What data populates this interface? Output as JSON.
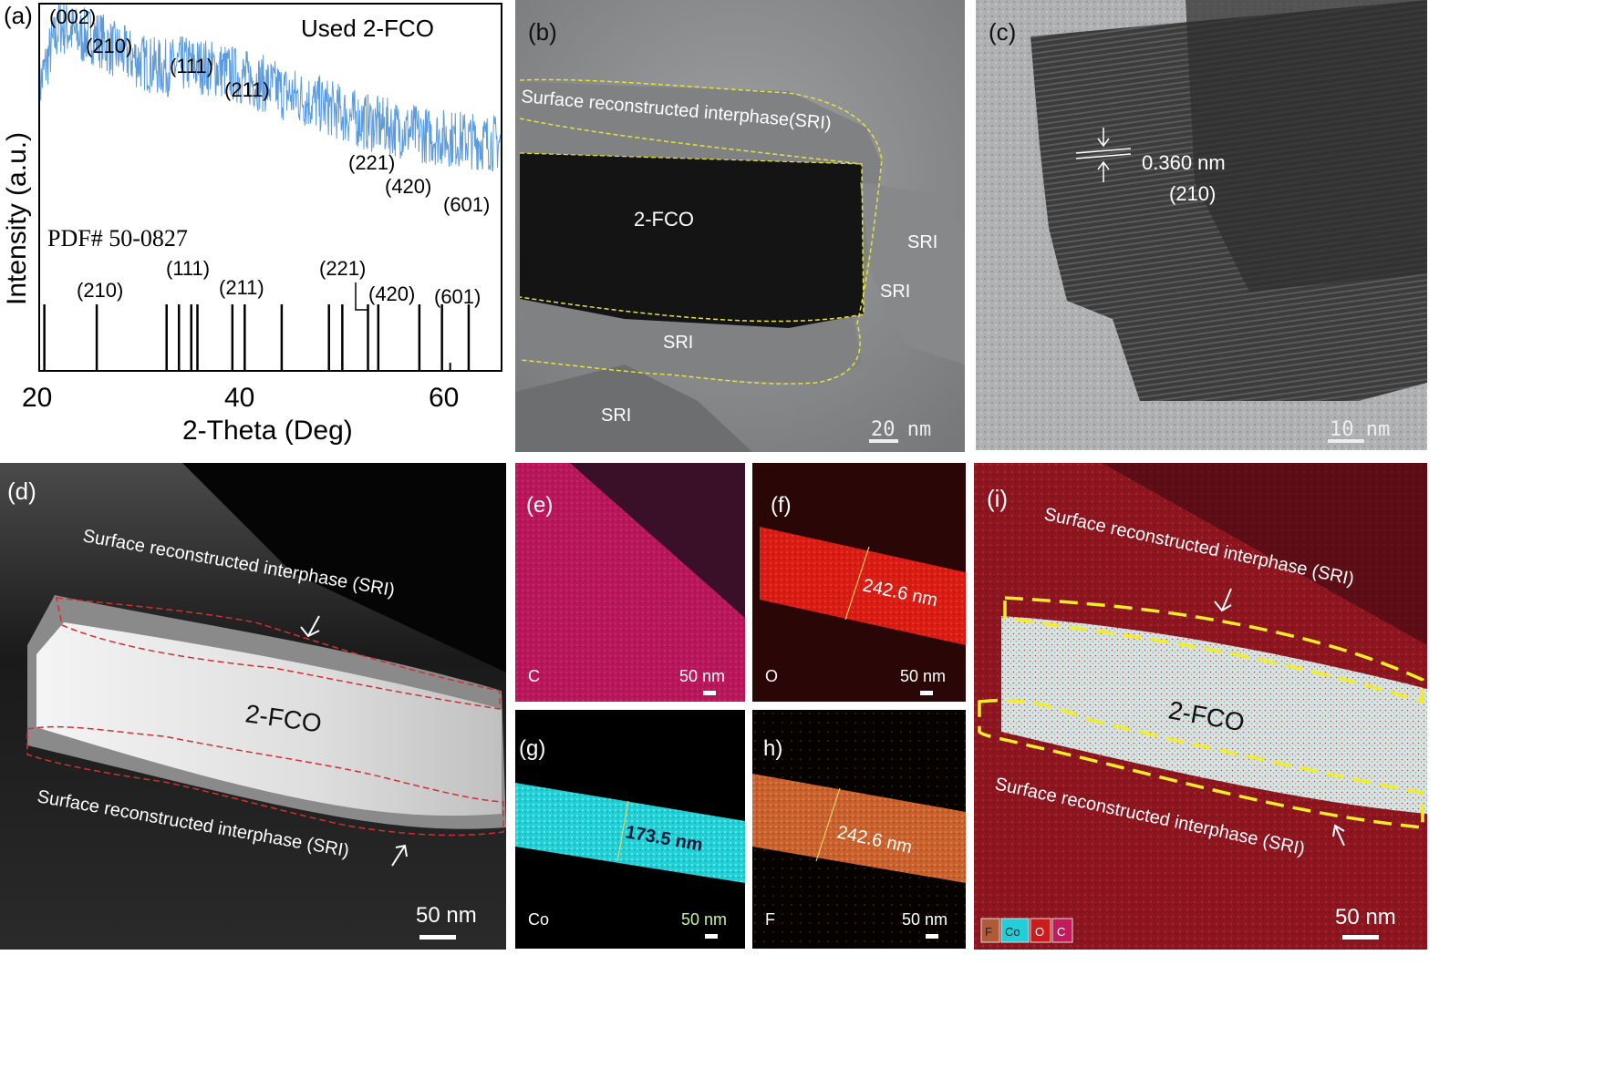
{
  "panel_a": {
    "label": "(a)",
    "sample": "Used 2-FCO",
    "pdf": "PDF# 50-0827",
    "ylabel": "Intensity (a.u.)",
    "xlabel": "2-Theta (Deg)",
    "xticks": [
      "20",
      "40",
      "60"
    ],
    "peak_labels": [
      "(002)",
      "(210)",
      "(111)",
      "(211)",
      "(221)",
      "(420)",
      "(601)"
    ],
    "ref_labels": [
      "(210)",
      "(111)",
      "(211)",
      "(221)",
      "(420)",
      "(601)"
    ]
  },
  "chart_data": {
    "type": "line",
    "xlabel": "2-Theta (Deg)",
    "ylabel": "Intensity (a.u.)",
    "xlim": [
      20,
      65
    ],
    "series": [
      {
        "x": [
          20,
          21,
          22,
          23,
          24,
          25,
          26,
          27,
          28,
          30,
          32,
          34,
          36,
          38,
          40,
          42,
          44,
          46,
          48,
          50,
          52,
          54,
          56,
          58,
          60,
          62,
          64,
          65
        ],
        "values": [
          0.62,
          0.78,
          0.9,
          0.88,
          0.85,
          0.86,
          0.84,
          0.8,
          0.78,
          0.74,
          0.71,
          0.73,
          0.72,
          0.7,
          0.67,
          0.64,
          0.6,
          0.57,
          0.54,
          0.5,
          0.47,
          0.45,
          0.43,
          0.41,
          0.4,
          0.39,
          0.38,
          0.38
        ]
      }
    ],
    "reference_peaks": [
      20.5,
      25.6,
      32.4,
      33.6,
      34.8,
      35.4,
      38.8,
      40.0,
      43.6,
      48.2,
      49.5,
      52.0,
      53.0,
      57.0,
      59.2,
      61.8
    ]
  },
  "panel_b": {
    "label": "(b)",
    "sri_band": "Surface reconstructed interphase(SRI)",
    "core": "2-FCO",
    "sri": "SRI",
    "scale": "20 nm"
  },
  "panel_c": {
    "label": "(c)",
    "spacing": "0.360 nm",
    "plane": "(210)",
    "scale": "10 nm"
  },
  "panel_d": {
    "label": "(d)",
    "sri_top": "Surface reconstructed interphase (SRI)",
    "core": "2-FCO",
    "sri_bottom": "Surface reconstructed interphase (SRI)",
    "scale": "50 nm"
  },
  "panel_e": {
    "label": "(e)",
    "element": "C",
    "scale": "50 nm"
  },
  "panel_f": {
    "label": "(f)",
    "element": "O",
    "width": "242.6 nm",
    "scale": "50 nm"
  },
  "panel_g": {
    "label": "(g)",
    "element": "Co",
    "width": "173.5 nm",
    "scale": "50 nm"
  },
  "panel_h": {
    "label": "h)",
    "element": "F",
    "width": "242.6 nm",
    "scale": "50 nm"
  },
  "panel_i": {
    "label": "(i)",
    "sri_top": "Surface reconstructed interphase (SRI)",
    "core": "2-FCO",
    "sri_bottom": "Surface reconstructed interphase (SRI)",
    "scale": "50 nm",
    "legend": [
      "F",
      "Co",
      "O",
      "C"
    ],
    "legend_colors": [
      "#b05a3a",
      "#22cfd8",
      "#cc1b1b",
      "#c21a5a"
    ]
  },
  "colors": {
    "xrd": "#5b9be0",
    "sri_outline_b": "#e6e040",
    "sri_outline_d": "#d23030",
    "sri_outline_i": "#f2ec2a",
    "carbon": "#c2185b",
    "oxygen": "#e0241c",
    "cobalt": "#27d8de",
    "fluorine": "#d96a32"
  }
}
